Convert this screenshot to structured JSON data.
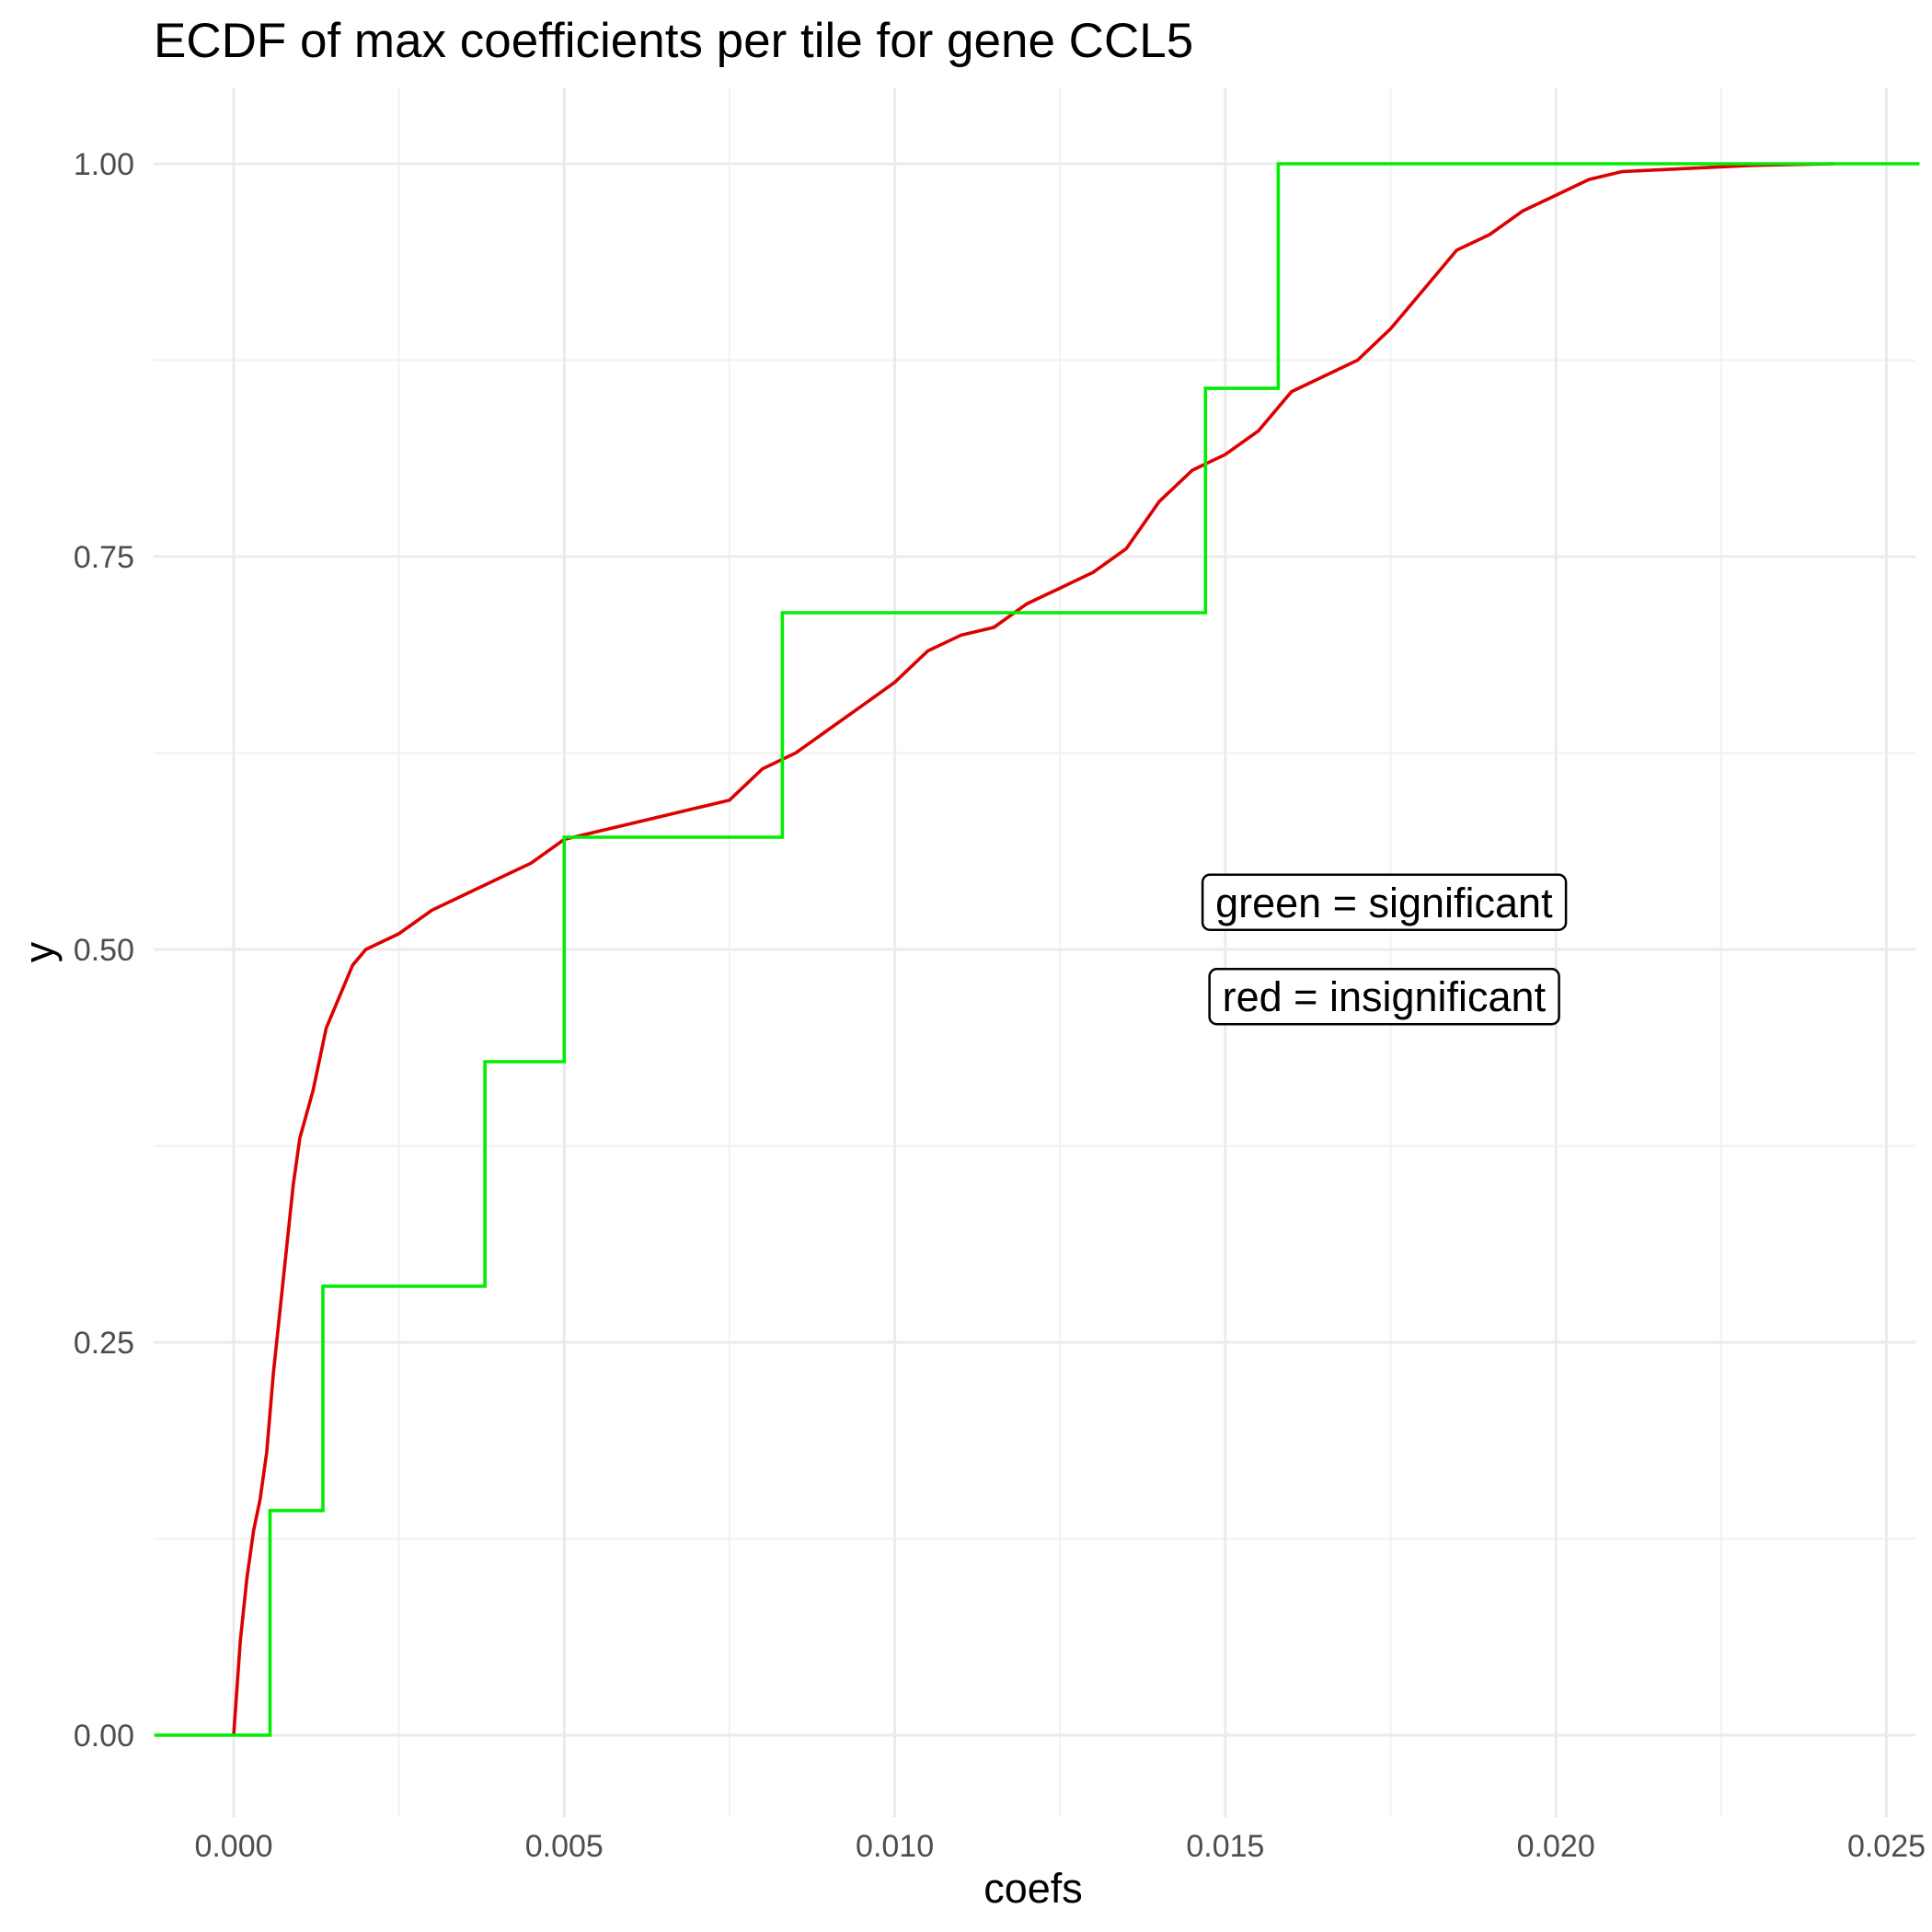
{
  "chart_data": {
    "type": "line",
    "title": "ECDF of max coefficients per tile for gene CCL5",
    "xlabel": "coefs",
    "ylabel": "y",
    "xlim": [
      -0.0012,
      0.0255
    ],
    "ylim": [
      -0.05,
      1.05
    ],
    "x_ticks": [
      {
        "value": 0.0,
        "label": "0.000"
      },
      {
        "value": 0.005,
        "label": "0.005"
      },
      {
        "value": 0.01,
        "label": "0.010"
      },
      {
        "value": 0.015,
        "label": "0.015"
      },
      {
        "value": 0.02,
        "label": "0.020"
      },
      {
        "value": 0.025,
        "label": "0.025"
      }
    ],
    "y_ticks": [
      {
        "value": 0.0,
        "label": "0.00"
      },
      {
        "value": 0.25,
        "label": "0.25"
      },
      {
        "value": 0.5,
        "label": "0.50"
      },
      {
        "value": 0.75,
        "label": "0.75"
      },
      {
        "value": 1.0,
        "label": "1.00"
      }
    ],
    "grid": true,
    "series": [
      {
        "color": "#00ee00",
        "step": true,
        "x": [
          -0.0012,
          0.00055,
          0.00135,
          0.0038,
          0.005,
          0.0083,
          0.0147,
          0.0158,
          0.0255
        ],
        "y": [
          0.0,
          0.1429,
          0.2857,
          0.4286,
          0.5714,
          0.7143,
          0.8571,
          1.0,
          1.0
        ]
      },
      {
        "color": "#dd0000",
        "step": false,
        "x": [
          0.0,
          5e-05,
          0.0001,
          0.0002,
          0.0003,
          0.0004,
          0.0005,
          0.0006,
          0.0007,
          0.0008,
          0.0009,
          0.001,
          0.0012,
          0.0014,
          0.0016,
          0.0018,
          0.002,
          0.0025,
          0.003,
          0.0035,
          0.004,
          0.0045,
          0.005,
          0.0055,
          0.006,
          0.007,
          0.0075,
          0.008,
          0.0085,
          0.009,
          0.0095,
          0.01,
          0.0105,
          0.011,
          0.0115,
          0.012,
          0.0125,
          0.013,
          0.0135,
          0.014,
          0.0145,
          0.015,
          0.0155,
          0.016,
          0.0165,
          0.017,
          0.0175,
          0.018,
          0.0185,
          0.019,
          0.0195,
          0.02,
          0.0205,
          0.021,
          0.022,
          0.023,
          0.0242
        ],
        "y": [
          0.0,
          0.03,
          0.06,
          0.1,
          0.13,
          0.15,
          0.18,
          0.23,
          0.27,
          0.31,
          0.35,
          0.38,
          0.41,
          0.45,
          0.47,
          0.49,
          0.5,
          0.51,
          0.525,
          0.535,
          0.545,
          0.555,
          0.57,
          0.575,
          0.58,
          0.59,
          0.595,
          0.615,
          0.625,
          0.64,
          0.655,
          0.67,
          0.69,
          0.7,
          0.705,
          0.72,
          0.73,
          0.74,
          0.755,
          0.785,
          0.805,
          0.815,
          0.83,
          0.855,
          0.865,
          0.875,
          0.895,
          0.92,
          0.945,
          0.955,
          0.97,
          0.98,
          0.99,
          0.995,
          0.997,
          0.999,
          1.0
        ]
      }
    ],
    "annotations": [
      {
        "text": "green = significant",
        "x": 0.0174,
        "y": 0.53
      },
      {
        "text": "red = insignificant",
        "x": 0.0174,
        "y": 0.47
      }
    ]
  }
}
